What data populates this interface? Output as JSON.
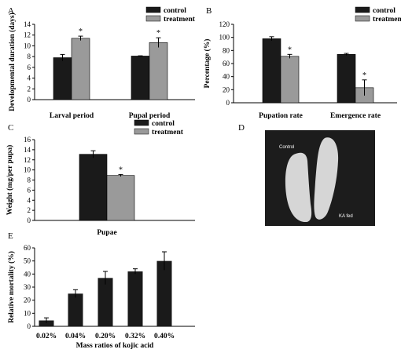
{
  "colors": {
    "control": "#1a1a1a",
    "treatment": "#9a9a9a",
    "single": "#1a1a1a",
    "photo_bg": "#1c1c1c",
    "larva": "#d6d6d6"
  },
  "photo": {
    "letter": "D",
    "label_control": "Control",
    "label_treated": "KA fed"
  },
  "chart_data": [
    {
      "letter": "A",
      "type": "bar",
      "ylabel": "Developmental duration (days)",
      "ylim": [
        0,
        14
      ],
      "yticks": [
        "0",
        "2",
        "4",
        "6",
        "8",
        "10",
        "12",
        "14"
      ],
      "categories": [
        "Larval period",
        "Pupal period"
      ],
      "legend": [
        "control",
        "treatment"
      ],
      "series": [
        {
          "name": "control",
          "values": [
            7.8,
            8.1
          ],
          "errors": [
            0.6,
            0.05
          ]
        },
        {
          "name": "treatment",
          "values": [
            11.4,
            10.6
          ],
          "errors": [
            0.4,
            0.9
          ]
        }
      ],
      "annotations": [
        "*",
        "*"
      ]
    },
    {
      "letter": "B",
      "type": "bar",
      "ylabel": "Percentage (%)",
      "ylim": [
        0,
        120
      ],
      "yticks": [
        "0",
        "20",
        "40",
        "60",
        "80",
        "100",
        "120"
      ],
      "categories": [
        "Pupation rate",
        "Emergence rate"
      ],
      "legend": [
        "control",
        "treatment"
      ],
      "series": [
        {
          "name": "control",
          "values": [
            98,
            74
          ],
          "errors": [
            3,
            1.5
          ]
        },
        {
          "name": "treatment",
          "values": [
            71,
            23
          ],
          "errors": [
            3,
            12
          ]
        }
      ],
      "annotations": [
        "*",
        "*"
      ]
    },
    {
      "letter": "C",
      "type": "bar",
      "ylabel": "Weight (mg/per pupa)",
      "ylim": [
        0,
        16
      ],
      "yticks": [
        "0",
        "2",
        "4",
        "6",
        "8",
        "10",
        "12",
        "14",
        "16"
      ],
      "categories": [
        "Pupae"
      ],
      "legend": [
        "control",
        "treatment"
      ],
      "series": [
        {
          "name": "control",
          "values": [
            13.1
          ],
          "errors": [
            0.7
          ]
        },
        {
          "name": "treatment",
          "values": [
            8.9
          ],
          "errors": [
            0.2
          ]
        }
      ],
      "annotations": [
        "*"
      ]
    },
    {
      "letter": "E",
      "type": "bar",
      "ylabel": "Relative mortality (%)",
      "xlabel": "Mass ratios of kojic acid",
      "ylim": [
        0,
        60
      ],
      "yticks": [
        "0",
        "10",
        "20",
        "30",
        "40",
        "50",
        "60"
      ],
      "categories": [
        "0.02%",
        "0.04%",
        "0.20%",
        "0.32%",
        "0.40%"
      ],
      "values": [
        4.5,
        25,
        37,
        42,
        50
      ],
      "errors": [
        2,
        3,
        5,
        2,
        7
      ]
    }
  ]
}
